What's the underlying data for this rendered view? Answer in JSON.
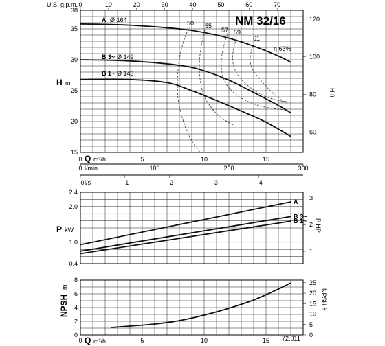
{
  "chart_data": {
    "type": "line",
    "title": "NM 32/16",
    "footer_code": "72.011",
    "flow_scales": {
      "q_label": "Q",
      "q_unit": "m³/h",
      "q_ticks": [
        "0",
        "5",
        "10",
        "15"
      ],
      "gpm_label": "U.S. g.p.m.",
      "gpm_ticks": [
        "0",
        "10",
        "20",
        "30",
        "40",
        "50",
        "60",
        "70"
      ],
      "lmin_label": "l/min",
      "lmin_ticks": [
        "0",
        "100",
        "200",
        "300"
      ],
      "ls_label": "l/s",
      "ls_ticks": [
        "0",
        "1",
        "2",
        "3",
        "4"
      ],
      "xlim": [
        0,
        18
      ]
    },
    "head": {
      "ylabel": "H",
      "yunit": "m",
      "ylim": [
        15,
        38
      ],
      "yticks": [
        "15",
        "20",
        "25",
        "30",
        "35",
        "38"
      ],
      "ylabel_right": "H ft",
      "yticks_right": [
        "60",
        "80",
        "100",
        "120"
      ],
      "series": [
        {
          "name": "A",
          "label": "Ø 164",
          "x": [
            0,
            4,
            8,
            10,
            12,
            14,
            16,
            17
          ],
          "y": [
            35.8,
            35.6,
            35.0,
            34.4,
            33.5,
            32.2,
            30.6,
            29.6
          ]
        },
        {
          "name": "B 3~",
          "label": "Ø 149",
          "x": [
            0,
            4,
            8,
            10,
            12,
            14,
            16,
            17
          ],
          "y": [
            30.0,
            29.8,
            29.1,
            28.2,
            26.7,
            24.7,
            22.6,
            21.4
          ]
        },
        {
          "name": "B 1~",
          "label": "Ø 143",
          "x": [
            0,
            4,
            7,
            9,
            11,
            13,
            15,
            17
          ],
          "y": [
            26.8,
            26.8,
            26.3,
            25.0,
            23.4,
            21.7,
            19.9,
            17.6
          ]
        }
      ],
      "efficiency_labels": [
        "50",
        "55",
        "57",
        "59",
        "61",
        "η 63%"
      ]
    },
    "power": {
      "ylabel": "P",
      "yunit": "kW",
      "ylim": [
        0.4,
        2.4
      ],
      "yticks": [
        "0.4",
        "1.0",
        "2.0",
        "2.4"
      ],
      "ylabel_right": "P HP",
      "yticks_right": [
        "1",
        "2",
        "3"
      ],
      "series": [
        {
          "name": "A",
          "x": [
            0,
            17
          ],
          "y": [
            0.93,
            2.13
          ]
        },
        {
          "name": "B 3~",
          "x": [
            0,
            17
          ],
          "y": [
            0.75,
            1.72
          ]
        },
        {
          "name": "B 1~",
          "x": [
            0,
            17
          ],
          "y": [
            0.68,
            1.59
          ]
        }
      ]
    },
    "npsh": {
      "ylabel": "NPSH",
      "yunit": "m",
      "ylim": [
        0,
        8
      ],
      "yticks": [
        "0",
        "2",
        "4",
        "6",
        "8"
      ],
      "ylabel_right": "NPSH ft",
      "yticks_right": [
        "0",
        "5",
        "10",
        "15",
        "20",
        "25"
      ],
      "series": [
        {
          "name": "NPSH",
          "x": [
            2.5,
            4,
            6,
            8,
            10,
            12,
            14,
            16,
            17
          ],
          "y": [
            1.1,
            1.3,
            1.6,
            2.1,
            2.9,
            3.9,
            5.1,
            6.7,
            7.6
          ]
        }
      ]
    }
  }
}
